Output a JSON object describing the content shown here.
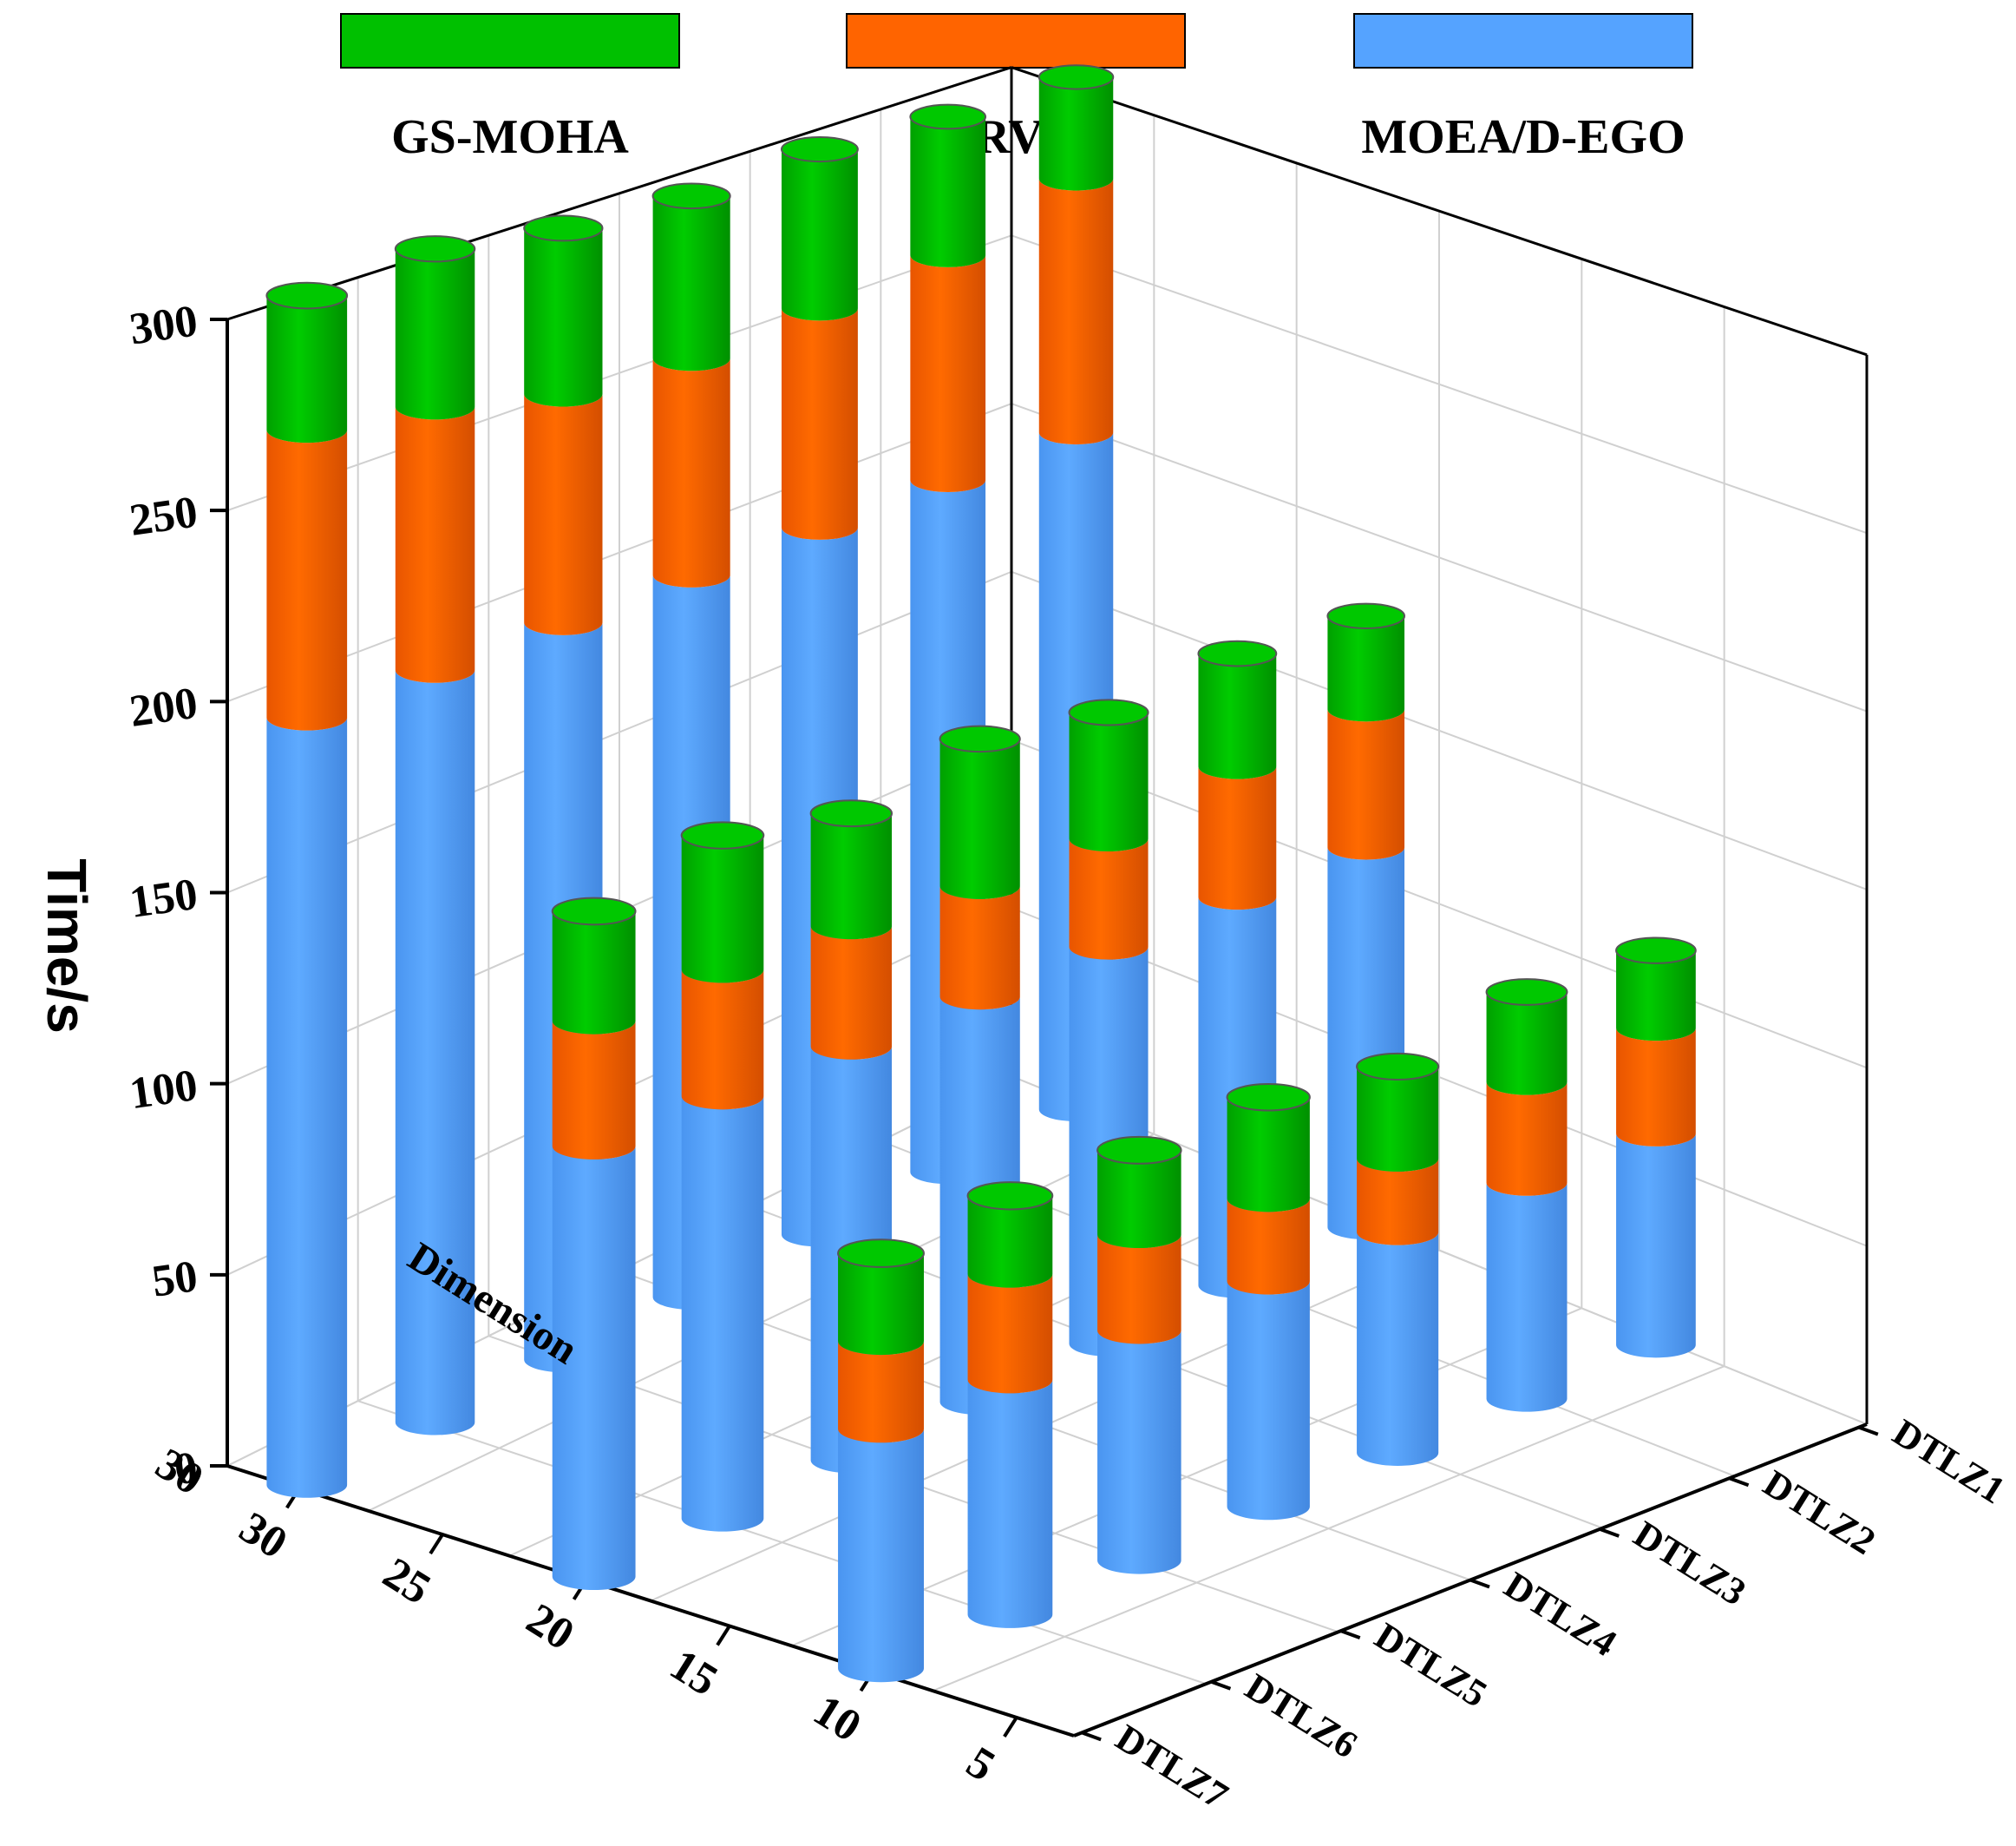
{
  "legend": [
    {
      "name": "GS-MOHA",
      "color": "#00c000"
    },
    {
      "name": "K-RVEA",
      "color": "#ff6400"
    },
    {
      "name": "MOEA/D-EGO",
      "color": "#55a3ff"
    }
  ],
  "axes": {
    "y_title": "Time/s",
    "y_ticks": [
      "0",
      "50",
      "100",
      "150",
      "200",
      "250",
      "300"
    ],
    "dimension_title": "Dimension",
    "dimension_ticks": [
      "30",
      "25",
      "20",
      "15",
      "10",
      "5"
    ],
    "dimension_extra_label": "30",
    "problem_ticks": [
      "DTLZ1",
      "DTLZ2",
      "DTLZ3",
      "DTLZ4",
      "DTLZ5",
      "DTLZ6",
      "DTLZ7"
    ]
  },
  "chart_data": {
    "type": "bar",
    "subtype": "3d-stacked-cylinder",
    "title": "",
    "xlabel": "Dimension",
    "ylabel": "Time/s",
    "zlabel": "",
    "ylim": [
      0,
      300
    ],
    "row_categories": [
      30,
      20,
      10
    ],
    "categories": [
      "DTLZ1",
      "DTLZ2",
      "DTLZ3",
      "DTLZ4",
      "DTLZ5",
      "DTLZ6",
      "DTLZ7"
    ],
    "stack_order": [
      "MOEA/D-EGO",
      "K-RVEA",
      "GS-MOHA"
    ],
    "rows": [
      {
        "dimension": 30,
        "series": [
          {
            "name": "MOEA/D-EGO",
            "values": [
              200,
              200,
              200,
              200,
              200,
              200,
              200
            ]
          },
          {
            "name": "K-RVEA",
            "values": [
              75,
              65,
              62,
              60,
              62,
              70,
              75
            ]
          },
          {
            "name": "GS-MOHA",
            "values": [
              30,
              40,
              45,
              45,
              45,
              42,
              35
            ]
          }
        ]
      },
      {
        "dimension": 20,
        "series": [
          {
            "name": "MOEA/D-EGO",
            "values": [
              110,
              110,
              110,
              110,
              110,
              110,
              110
            ]
          },
          {
            "name": "K-RVEA",
            "values": [
              40,
              37,
              30,
              30,
              32,
              33,
              32
            ]
          },
          {
            "name": "GS-MOHA",
            "values": [
              27,
              32,
              35,
              40,
              30,
              35,
              28
            ]
          }
        ]
      },
      {
        "dimension": 10,
        "series": [
          {
            "name": "MOEA/D-EGO",
            "values": [
              60,
              60,
              60,
              60,
              60,
              60,
              60
            ]
          },
          {
            "name": "K-RVEA",
            "values": [
              30,
              28,
              20,
              22,
              25,
              27,
              22
            ]
          },
          {
            "name": "GS-MOHA",
            "values": [
              22,
              25,
              25,
              27,
              22,
              20,
              22
            ]
          }
        ]
      }
    ]
  }
}
